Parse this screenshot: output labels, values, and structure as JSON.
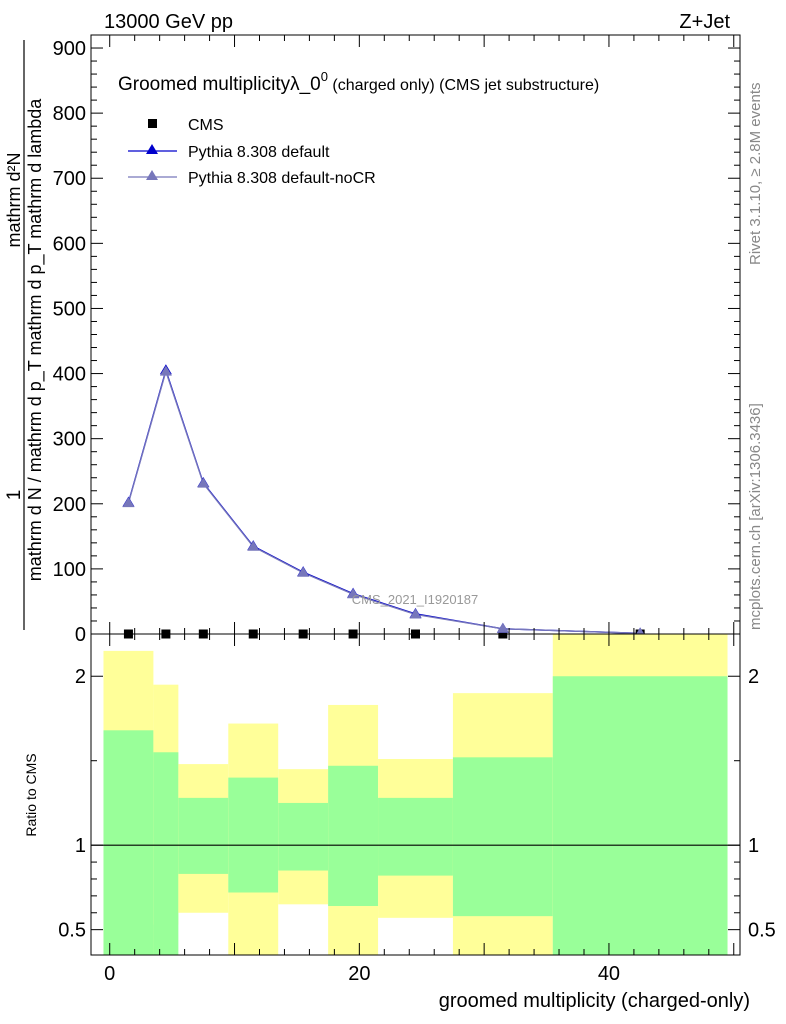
{
  "header": {
    "energy_label": "13000 GeV pp",
    "process_label": "Z+Jet"
  },
  "side_labels": {
    "rivet": "Rivet 3.1.10, ≥ 2.8M events",
    "mcplots": "mcplots.cern.ch [arXiv:1306.3436]"
  },
  "watermark": "CMS_2021_I1920187",
  "colors": {
    "cms": "#000000",
    "pythia_default": "#0000cc",
    "pythia_nocr": "#7777bb",
    "band_inner": "#99ff99",
    "band_outer": "#ffff99"
  },
  "chart_data": [
    {
      "type": "line",
      "title_main": "Groomed multiplicityλ_0",
      "title_sup": "0",
      "title_rest": " (charged only) (CMS jet substructure)",
      "ylabel_numerator": "1",
      "ylabel_denominator": "mathrm d N / mathrm d p_T mathrm d p_T mathrm d lambda",
      "ylabel_top": "mathrm d²N",
      "xlim": [
        -1.5,
        50.5
      ],
      "ylim": [
        0,
        920
      ],
      "yticks": [
        0,
        100,
        200,
        300,
        400,
        500,
        600,
        700,
        800,
        900
      ],
      "legend_position": "top-left",
      "series": [
        {
          "name": "CMS",
          "marker": "square",
          "x": [
            1.5,
            4.5,
            7.5,
            11.5,
            15.5,
            19.5,
            24.5,
            31.5,
            42.5
          ],
          "y": [
            0,
            0,
            0,
            0,
            0,
            0,
            0,
            0,
            0
          ]
        },
        {
          "name": "Pythia 8.308 default",
          "marker": "triangle",
          "x": [
            1.5,
            4.5,
            7.5,
            11.5,
            15.5,
            19.5,
            24.5,
            31.5,
            42.5
          ],
          "y": [
            202,
            405,
            232,
            135,
            95,
            62,
            31,
            8,
            1
          ]
        },
        {
          "name": "Pythia 8.308 default-noCR",
          "marker": "triangle",
          "x": [
            1.5,
            4.5,
            7.5,
            11.5,
            15.5,
            19.5,
            24.5,
            31.5,
            42.5
          ],
          "y": [
            201,
            403,
            231,
            134,
            94,
            61,
            30,
            8,
            1
          ]
        }
      ]
    },
    {
      "type": "bar",
      "ylabel": "Ratio to CMS",
      "xlabel": "groomed multiplicity (charged-only)",
      "xlim": [
        -1.5,
        50.5
      ],
      "ylim": [
        0.35,
        2.25
      ],
      "xticks": [
        0,
        20,
        40
      ],
      "yticks": [
        0.5,
        1,
        2
      ],
      "reference_line": 1,
      "bins": [
        {
          "lo": -0.5,
          "hi": 3.5,
          "inner_lo": 0.35,
          "inner_hi": 1.68,
          "outer_lo": 0.35,
          "outer_hi": 2.15
        },
        {
          "lo": 3.5,
          "hi": 5.5,
          "inner_lo": 0.35,
          "inner_hi": 1.55,
          "outer_lo": 0.53,
          "outer_hi": 1.95
        },
        {
          "lo": 5.5,
          "hi": 9.5,
          "inner_lo": 0.83,
          "inner_hi": 1.28,
          "outer_lo": 0.6,
          "outer_hi": 1.48
        },
        {
          "lo": 9.5,
          "hi": 13.5,
          "inner_lo": 0.72,
          "inner_hi": 1.4,
          "outer_lo": 0.35,
          "outer_hi": 1.72
        },
        {
          "lo": 13.5,
          "hi": 17.5,
          "inner_lo": 0.85,
          "inner_hi": 1.25,
          "outer_lo": 0.65,
          "outer_hi": 1.45
        },
        {
          "lo": 17.5,
          "hi": 21.5,
          "inner_lo": 0.64,
          "inner_hi": 1.47,
          "outer_lo": 0.35,
          "outer_hi": 1.83
        },
        {
          "lo": 21.5,
          "hi": 27.5,
          "inner_lo": 0.82,
          "inner_hi": 1.28,
          "outer_lo": 0.57,
          "outer_hi": 1.51
        },
        {
          "lo": 27.5,
          "hi": 35.5,
          "inner_lo": 0.58,
          "inner_hi": 1.52,
          "outer_lo": 0.35,
          "outer_hi": 1.9
        },
        {
          "lo": 35.5,
          "hi": 49.5,
          "inner_lo": 0.35,
          "inner_hi": 2.0,
          "outer_lo": 0.35,
          "outer_hi": 2.25
        }
      ]
    }
  ]
}
